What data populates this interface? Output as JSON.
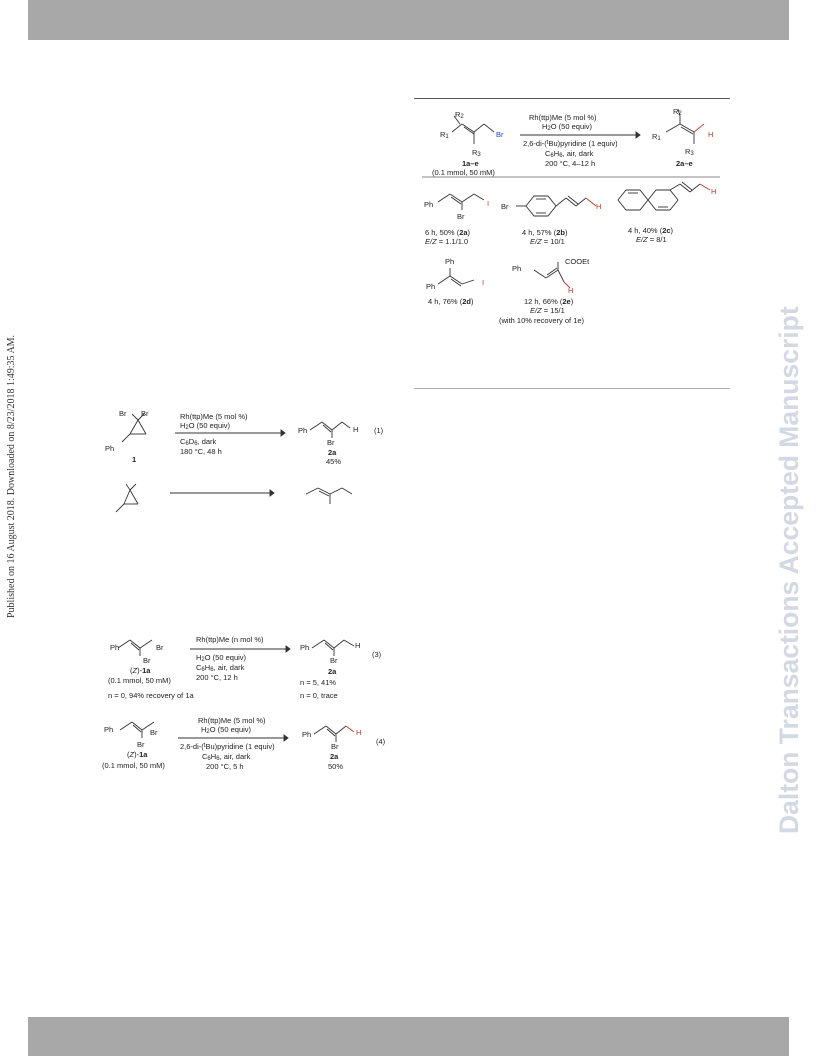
{
  "side_text_left": "Published on 16 August 2018. Downloaded on 8/23/2018 1:49:35 AM.",
  "side_text_right": "Dalton Transactions Accepted Manuscript",
  "scheme_top": {
    "r2": "R",
    "r1": "R",
    "r3": "R",
    "br": "Br",
    "h": "H",
    "cond1": "Rh(ttp)Me (5 mol %)",
    "cond2": "H",
    "cond2b": "O (50 equiv)",
    "cond3": "2,6-di-(",
    "cond3b": "Bu)pyridine (1 equiv)",
    "cond4": "C",
    "cond4b": "H",
    "cond4c": ", air, dark",
    "cond5": "200 °C, 4–12 h",
    "sm_label": "1a–e",
    "sm_sub": "(0.1 mmol, 50 mM)",
    "pr_label": "2a–e",
    "products": [
      {
        "ph": "Ph",
        "br": "Br",
        "l1": "6 h, 50% (",
        "tag": "2a",
        "l1b": ")",
        "l2a": "E/Z",
        "l2b": " = 1.1/1.0"
      },
      {
        "br": "Br",
        "h": "H",
        "l1": "4 h, 57% (",
        "tag": "2b",
        "l1b": ")",
        "l2a": "E/Z",
        "l2b": " = 10/1"
      },
      {
        "h": "H",
        "l1": "4 h, 40% (",
        "tag": "2c",
        "l1b": ")",
        "l2a": "E/Z",
        "l2b": " = 8/1"
      },
      {
        "ph1": "Ph",
        "ph2": "Ph",
        "l1": "4 h, 76% (",
        "tag": "2d",
        "l1b": ")"
      },
      {
        "ph": "Ph",
        "ester": "COOEt",
        "h": "H",
        "l1": "12 h, 66% (",
        "tag": "2e",
        "l1b": ")",
        "l2a": "E/Z",
        "l2b": " = 15/1",
        "l3": "(with 10% recovery of 1e)"
      }
    ]
  },
  "eq1": {
    "br1": "Br",
    "br2": "Br",
    "ph": "Ph",
    "label": "1",
    "cond1": "Rh(ttp)Me (5 mol %)",
    "cond2": "H",
    "cond2b": "O (50 equiv)",
    "cond3": "C",
    "cond3b": "D",
    "cond3c": ", dark",
    "cond4": "180 °C, 48 h",
    "p_ph": "Ph",
    "p_h": "H",
    "p_br": "Br",
    "p_label": "2a",
    "p_yield": "45%",
    "num": "(1)"
  },
  "eq3": {
    "ph": "Ph",
    "br1": "Br",
    "br2": "Br",
    "label_pre": "(",
    "label_z": "Z",
    "label_post": ")-",
    "label_b": "1a",
    "sub": "(0.1 mmol, 50 mM)",
    "cond1": "Rh(ttp)Me (n mol %)",
    "cond2": "H",
    "cond2b": "O (50 equiv)",
    "cond3": "C",
    "cond3b": "H",
    "cond3c": ", air, dark",
    "cond4": "200 °C, 12 h",
    "p_ph": "Ph",
    "p_h": "H",
    "p_br": "Br",
    "p_label": "2a",
    "y1": "n = 5, 41%",
    "y2": "n = 0, trace",
    "note": "n = 0, 94% recovery of 1a",
    "num": "(3)"
  },
  "eq4": {
    "ph": "Ph",
    "br1": "Br",
    "br2": "Br",
    "label_pre": "(",
    "label_z": "Z",
    "label_post": ")-",
    "label_b": "1a",
    "sub": "(0.1 mmol, 50 mM)",
    "cond1": "Rh(ttp)Me (5 mol %)",
    "cond2": "H",
    "cond2b": "O (50 equiv)",
    "cond3": "2,6-di-(",
    "cond3b": "Bu)pyridine (1 equiv)",
    "cond4": "C",
    "cond4b": "H",
    "cond4c": ", air, dark",
    "cond5": "200 °C, 5 h",
    "p_ph": "Ph",
    "p_h": "H",
    "p_br": "Br",
    "p_label": "2a",
    "p_yield": "50%",
    "num": "(4)"
  }
}
